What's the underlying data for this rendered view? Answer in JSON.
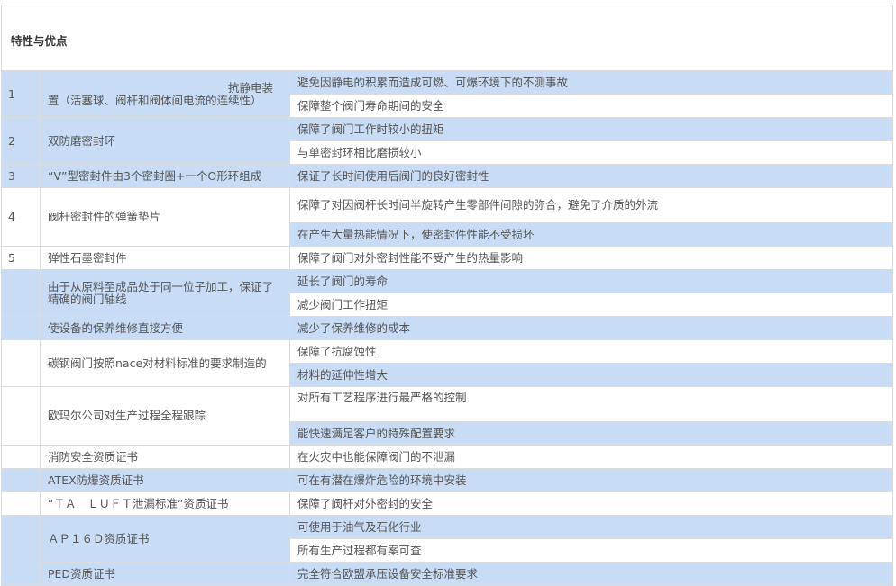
{
  "title": "特性与优点",
  "colors": {
    "row_blue": "#c9dcf6",
    "border": "#dcdcdc",
    "text": "#555555"
  },
  "groups": [
    {
      "index": "1",
      "feature": "抗静电装置（活塞球、阀杆和阀体间电流的连续性）",
      "bg": "blue",
      "benefits": [
        "避免因静电的积累而造成可燃、可爆环境下的不测事故",
        "保障整个阀门寿命期间的安全"
      ]
    },
    {
      "index": "2",
      "feature": "双防磨密封环",
      "bg": "blue",
      "benefits": [
        "保障了阀门工作时较小的扭矩",
        "与单密封环相比磨损较小"
      ]
    },
    {
      "index": "3",
      "feature": "“V”型密封件由3个密封圈+一个O形环组成",
      "bg": "blue",
      "benefits": [
        "保证了长时间使用后阀门的良好密封性"
      ]
    },
    {
      "index": "4",
      "feature": "阀杆密封件的弹簧垫片",
      "bg": "white",
      "benefits": [
        "保障了对因阀杆长时间半旋转产生零部件间隙的弥合，避免了介质的外流",
        "在产生大量热能情况下，使密封件性能不受损坏"
      ]
    },
    {
      "index": "5",
      "feature": "弹性石墨密封件",
      "bg": "white",
      "benefits": [
        "保障了阀门对外密封性能不受产生的热量影响"
      ]
    },
    {
      "index": "",
      "feature": "由于从原料至成品处于同一位子加工，保证了精确的阀门轴线",
      "bg": "blue",
      "benefits": [
        "延长了阀门的寿命",
        "减少阀门工作扭矩"
      ]
    },
    {
      "index": "",
      "feature": "使设备的保养维修直接方便",
      "bg": "blue",
      "benefits": [
        "减少了保养维修的成本"
      ]
    },
    {
      "index": "",
      "feature": "碳钢阀门按照nace对材料标准的要求制造的",
      "bg": "white",
      "benefits": [
        "保障了抗腐蚀性",
        "材料的延伸性增大"
      ]
    },
    {
      "index": "",
      "feature": "欧玛尔公司对生产过程全程跟踪",
      "bg": "white",
      "benefits": [
        "对所有工艺程序进行最严格的控制",
        "能快速满足客户的特殊配置要求"
      ]
    },
    {
      "index": "",
      "feature": "消防安全资质证书",
      "bg": "white",
      "benefits": [
        "在火灾中也能保障阀门的不泄漏"
      ]
    },
    {
      "index": "",
      "feature": "ATEX防爆资质证书",
      "bg": "blue",
      "benefits": [
        "可在有潜在爆炸危险的环境中安装"
      ]
    },
    {
      "index": "",
      "feature": "“ＴＡ　ＬＵＦＴ泄漏标准”资质证书",
      "bg": "white",
      "benefits": [
        "保障了阀杆对外密封的安全"
      ]
    },
    {
      "index": "",
      "feature": "ＡＰ１６Ｄ资质证书",
      "bg": "blue",
      "benefits": [
        "可使用于油气及石化行业",
        "所有生产过程都有案可查"
      ]
    },
    {
      "index": "",
      "feature": "PED资质证书",
      "bg": "blue",
      "benefits": [
        "完全符合欧盟承压设备安全标准要求"
      ]
    }
  ]
}
